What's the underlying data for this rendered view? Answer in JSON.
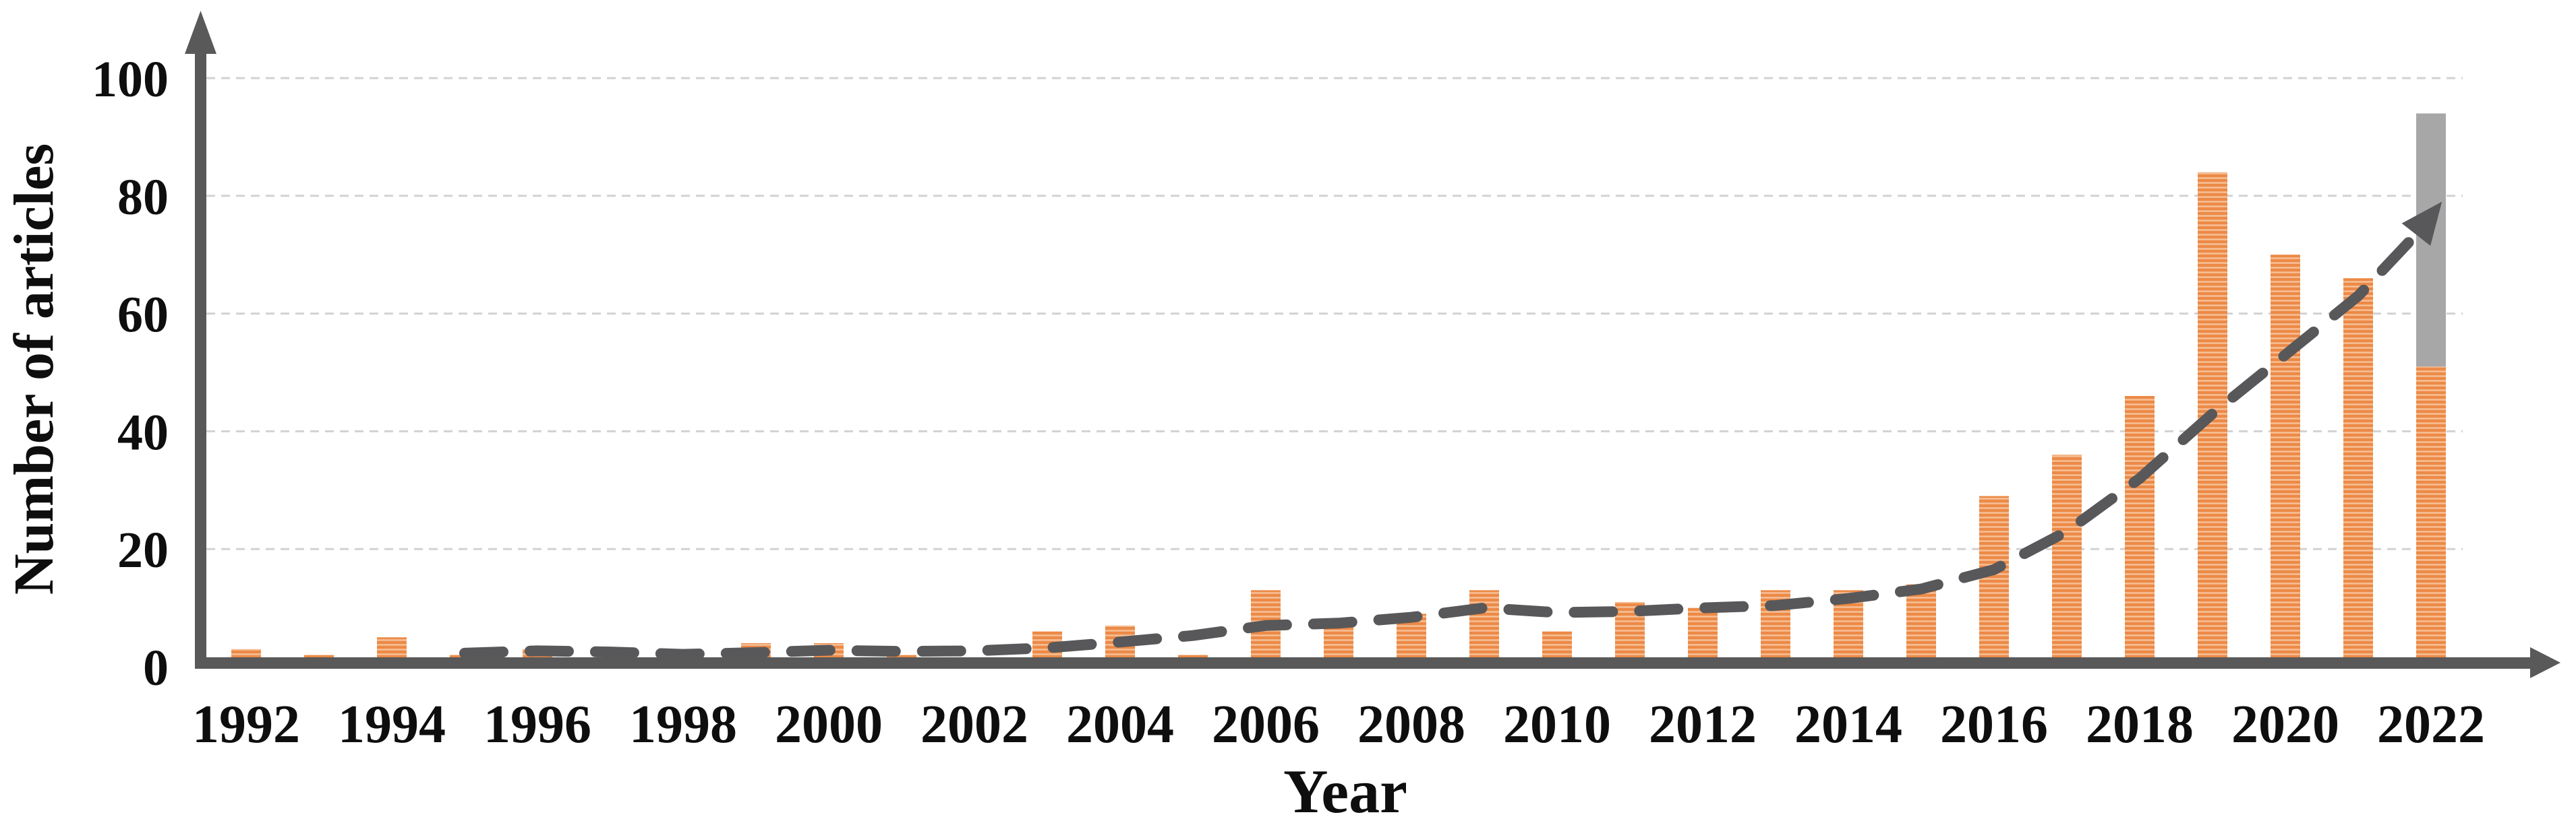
{
  "chart_data": {
    "type": "bar",
    "title": "",
    "xlabel": "Year",
    "ylabel": "Number of articles",
    "ylim": [
      0,
      100
    ],
    "yticks": [
      0,
      20,
      40,
      60,
      80,
      100
    ],
    "xtick_labels": [
      1992,
      1994,
      1996,
      1998,
      2000,
      2002,
      2004,
      2006,
      2008,
      2010,
      2012,
      2014,
      2016,
      2018,
      2020,
      2022
    ],
    "categories": [
      1992,
      1993,
      1994,
      1995,
      1996,
      1997,
      1998,
      1999,
      2000,
      2001,
      2002,
      2003,
      2004,
      2005,
      2006,
      2007,
      2008,
      2009,
      2010,
      2011,
      2012,
      2013,
      2014,
      2015,
      2016,
      2017,
      2018,
      2019,
      2020,
      2021,
      2022
    ],
    "series": [
      {
        "name": "Number of articles",
        "bar_color": "#EC8A46",
        "bar_stripe_color": "#F6BE95",
        "values": [
          3,
          2,
          5,
          2,
          3,
          2,
          1,
          4,
          4,
          2,
          0,
          6,
          7,
          2,
          13,
          7,
          9,
          13,
          6,
          11,
          10,
          13,
          13,
          14,
          29,
          36,
          46,
          84,
          70,
          66,
          51
        ]
      }
    ],
    "gray_overlay_bar": {
      "year": 2022,
      "value": 94,
      "color": "#A7A7A7"
    },
    "trend": {
      "color": "#58585A",
      "style": "dashed",
      "points": [
        [
          1995,
          2.3
        ],
        [
          1996,
          2.7
        ],
        [
          1997,
          2.5
        ],
        [
          1998,
          2.1
        ],
        [
          1999,
          2.4
        ],
        [
          2000,
          2.8
        ],
        [
          2001,
          2.6
        ],
        [
          2002,
          2.7
        ],
        [
          2003,
          3.2
        ],
        [
          2004,
          4.2
        ],
        [
          2005,
          5.3
        ],
        [
          2006,
          7.0
        ],
        [
          2007,
          7.4
        ],
        [
          2008,
          8.4
        ],
        [
          2009,
          10.0
        ],
        [
          2010,
          9.2
        ],
        [
          2011,
          9.4
        ],
        [
          2012,
          10.0
        ],
        [
          2013,
          10.4
        ],
        [
          2014,
          11.6
        ],
        [
          2015,
          13.2
        ],
        [
          2016,
          16.5
        ],
        [
          2017,
          23
        ],
        [
          2018,
          32
        ],
        [
          2019,
          43
        ],
        [
          2020,
          53
        ],
        [
          2021,
          63
        ],
        [
          2021.8,
          73.5
        ]
      ],
      "arrow_tip": [
        2022.15,
        79
      ]
    },
    "grid": {
      "show": true,
      "color": "#D2D2D2",
      "dash": [
        13,
        9
      ]
    },
    "axis_color": "#595959",
    "legend_position": "none"
  }
}
